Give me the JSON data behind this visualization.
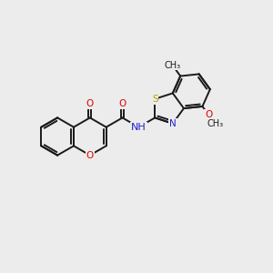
{
  "background_color": "#ececec",
  "bond_color": "#1a1a1a",
  "bond_width": 1.4,
  "atom_colors": {
    "O": "#e00000",
    "N": "#2020cc",
    "S": "#b8a000",
    "C": "#1a1a1a"
  },
  "font_size": 7.5,
  "fig_width": 3.0,
  "fig_height": 3.0,
  "dpi": 100,
  "xlim": [
    0,
    10
  ],
  "ylim": [
    2,
    8
  ]
}
